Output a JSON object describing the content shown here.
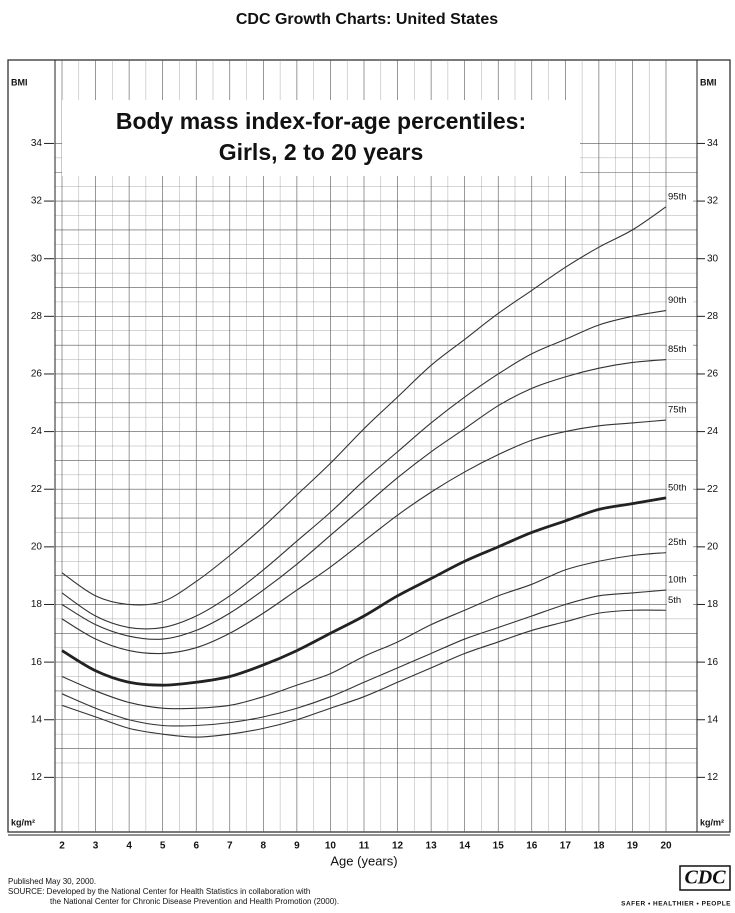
{
  "header": {
    "title": "CDC Growth Charts: United States"
  },
  "chart_data": {
    "type": "line",
    "title": "Body mass index-for-age percentiles:",
    "subtitle": "Girls, 2 to 20 years",
    "y_unit_top": "BMI",
    "y_unit_bottom": "kg/m²",
    "x_label": "Age (years)",
    "x": [
      2,
      3,
      4,
      5,
      6,
      7,
      8,
      9,
      10,
      11,
      12,
      13,
      14,
      15,
      16,
      17,
      18,
      19,
      20
    ],
    "xlim": [
      2,
      20
    ],
    "xticks": [
      2,
      3,
      4,
      5,
      6,
      7,
      8,
      9,
      10,
      11,
      12,
      13,
      14,
      15,
      16,
      17,
      18,
      19,
      20
    ],
    "ylim": [
      10,
      37
    ],
    "yticks": [
      12,
      14,
      16,
      18,
      20,
      22,
      24,
      26,
      28,
      30,
      32,
      34
    ],
    "grid": true,
    "series": [
      {
        "name": "95th",
        "color": "#333333",
        "values": [
          19.1,
          18.3,
          18.0,
          18.1,
          18.8,
          19.7,
          20.7,
          21.8,
          22.9,
          24.1,
          25.2,
          26.3,
          27.2,
          28.1,
          28.9,
          29.7,
          30.4,
          31.0,
          31.8
        ]
      },
      {
        "name": "90th",
        "color": "#333333",
        "values": [
          18.4,
          17.6,
          17.2,
          17.2,
          17.6,
          18.3,
          19.2,
          20.2,
          21.2,
          22.3,
          23.3,
          24.3,
          25.2,
          26.0,
          26.7,
          27.2,
          27.7,
          28.0,
          28.2
        ]
      },
      {
        "name": "85th",
        "color": "#333333",
        "values": [
          18.0,
          17.3,
          16.9,
          16.8,
          17.1,
          17.7,
          18.5,
          19.4,
          20.4,
          21.4,
          22.4,
          23.3,
          24.1,
          24.9,
          25.5,
          25.9,
          26.2,
          26.4,
          26.5
        ]
      },
      {
        "name": "75th",
        "color": "#333333",
        "values": [
          17.5,
          16.8,
          16.4,
          16.3,
          16.5,
          17.0,
          17.7,
          18.5,
          19.3,
          20.2,
          21.1,
          21.9,
          22.6,
          23.2,
          23.7,
          24.0,
          24.2,
          24.3,
          24.4
        ]
      },
      {
        "name": "50th",
        "color": "#222222",
        "values": [
          16.4,
          15.7,
          15.3,
          15.2,
          15.3,
          15.5,
          15.9,
          16.4,
          17.0,
          17.6,
          18.3,
          18.9,
          19.5,
          20.0,
          20.5,
          20.9,
          21.3,
          21.5,
          21.7
        ]
      },
      {
        "name": "25th",
        "color": "#333333",
        "values": [
          15.5,
          15.0,
          14.6,
          14.4,
          14.4,
          14.5,
          14.8,
          15.2,
          15.6,
          16.2,
          16.7,
          17.3,
          17.8,
          18.3,
          18.7,
          19.2,
          19.5,
          19.7,
          19.8
        ]
      },
      {
        "name": "10th",
        "color": "#333333",
        "values": [
          14.9,
          14.4,
          14.0,
          13.8,
          13.8,
          13.9,
          14.1,
          14.4,
          14.8,
          15.3,
          15.8,
          16.3,
          16.8,
          17.2,
          17.6,
          18.0,
          18.3,
          18.4,
          18.5
        ]
      },
      {
        "name": "5th",
        "color": "#333333",
        "values": [
          14.5,
          14.1,
          13.7,
          13.5,
          13.4,
          13.5,
          13.7,
          14.0,
          14.4,
          14.8,
          15.3,
          15.8,
          16.3,
          16.7,
          17.1,
          17.4,
          17.7,
          17.8,
          17.8
        ]
      }
    ]
  },
  "footer": {
    "published": "Published May 30, 2000.",
    "source": [
      "SOURCE: Developed by the National Center for Health Statistics in collaboration with",
      "the National Center for Chronic Disease Prevention and Health Promotion (2000)."
    ]
  },
  "logo": {
    "text": "CDC",
    "tagline": "SAFER • HEALTHIER • PEOPLE"
  }
}
